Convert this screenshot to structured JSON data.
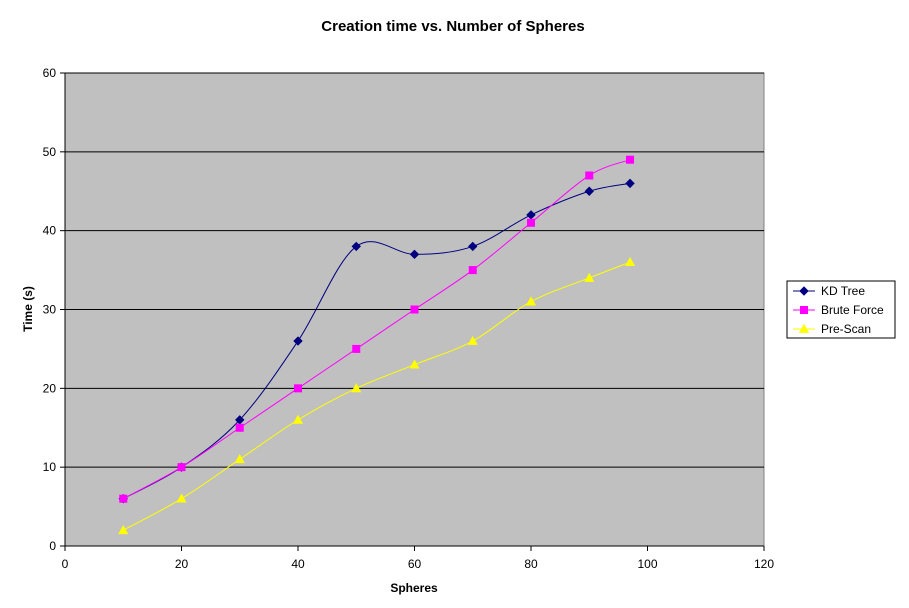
{
  "chart_data": {
    "type": "line",
    "title": "Creation time vs. Number of Spheres",
    "xlabel": "Spheres",
    "ylabel": "Time (s)",
    "xlim": [
      0,
      120
    ],
    "ylim": [
      0,
      60
    ],
    "x_ticks": [
      0,
      20,
      40,
      60,
      80,
      100,
      120
    ],
    "y_ticks": [
      0,
      10,
      20,
      30,
      40,
      50,
      60
    ],
    "grid": "horizontal major gridlines",
    "legend_position": "right",
    "plot_background": "#c0c0c0",
    "smoothed_lines": true,
    "series": [
      {
        "name": "KD Tree",
        "color": "#000080",
        "marker": "diamond",
        "x": [
          10,
          20,
          30,
          40,
          50,
          60,
          70,
          80,
          90,
          97
        ],
        "values": [
          6,
          10,
          16,
          26,
          38,
          37,
          38,
          42,
          45,
          46
        ]
      },
      {
        "name": "Brute Force",
        "color": "#ff00ff",
        "marker": "square",
        "x": [
          10,
          20,
          30,
          40,
          50,
          60,
          70,
          80,
          90,
          97
        ],
        "values": [
          6,
          10,
          15,
          20,
          25,
          30,
          35,
          41,
          47,
          49
        ]
      },
      {
        "name": "Pre-Scan",
        "color": "#ffff00",
        "marker": "triangle",
        "x": [
          10,
          20,
          30,
          40,
          50,
          60,
          70,
          80,
          90,
          97
        ],
        "values": [
          2,
          6,
          11,
          16,
          20,
          23,
          26,
          31,
          34,
          36
        ]
      }
    ]
  }
}
